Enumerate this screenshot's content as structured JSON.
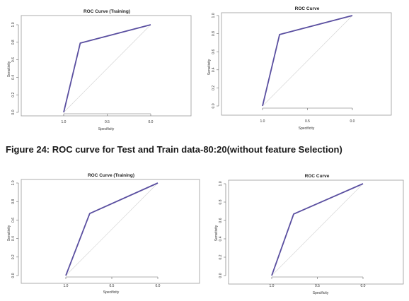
{
  "caption": "Figure 24: ROC curve for Test and Train data-80:20(without feature Selection)",
  "colors": {
    "roc_line": "#5a4fa0",
    "diagonal": "#d0d0d0",
    "frame": "#9a9a9a"
  },
  "chart_data": [
    {
      "type": "line",
      "title": "ROC Curve (Training)",
      "xlabel": "Specificity",
      "ylabel": "Sensitivity",
      "xlim": [
        1.0,
        0.0
      ],
      "ylim": [
        0.0,
        1.0
      ],
      "x_ticks": [
        "1.0",
        "0.5",
        "0.0"
      ],
      "y_ticks": [
        "0.0",
        "0.2",
        "0.4",
        "0.6",
        "0.8",
        "1.0"
      ],
      "grid": false,
      "series": [
        {
          "x": [
            1.0,
            0.81,
            0.0
          ],
          "y": [
            0.0,
            0.79,
            1.0
          ]
        }
      ],
      "reference_line": {
        "x": [
          1.0,
          0.0
        ],
        "y": [
          0.0,
          1.0
        ]
      }
    },
    {
      "type": "line",
      "title": "ROC Curve",
      "xlabel": "Specificity",
      "ylabel": "Sensitivity",
      "xlim": [
        1.0,
        0.0
      ],
      "ylim": [
        0.0,
        1.0
      ],
      "x_ticks": [
        "1.0",
        "0.5",
        "0.0"
      ],
      "y_ticks": [
        "0.0",
        "0.2",
        "0.4",
        "0.6",
        "0.8",
        "1.0"
      ],
      "grid": false,
      "series": [
        {
          "x": [
            1.0,
            0.81,
            0.0
          ],
          "y": [
            0.0,
            0.79,
            1.0
          ]
        }
      ],
      "reference_line": {
        "x": [
          1.0,
          0.0
        ],
        "y": [
          0.0,
          1.0
        ]
      }
    },
    {
      "type": "line",
      "title": "ROC Curve (Training)",
      "xlabel": "Specificity",
      "ylabel": "Sensitivity",
      "xlim": [
        1.0,
        0.0
      ],
      "ylim": [
        0.0,
        1.0
      ],
      "x_ticks": [
        "1.0",
        "0.5",
        "0.0"
      ],
      "y_ticks": [
        "0.0",
        "0.2",
        "0.4",
        "0.6",
        "0.8",
        "1.0"
      ],
      "grid": false,
      "series": [
        {
          "x": [
            1.0,
            0.74,
            0.0
          ],
          "y": [
            0.0,
            0.67,
            1.0
          ]
        }
      ],
      "reference_line": {
        "x": [
          1.0,
          0.0
        ],
        "y": [
          0.0,
          1.0
        ]
      }
    },
    {
      "type": "line",
      "title": "ROC Curve",
      "xlabel": "Specificity",
      "ylabel": "Sensitivity",
      "xlim": [
        1.0,
        0.0
      ],
      "ylim": [
        0.0,
        1.0
      ],
      "x_ticks": [
        "1.0",
        "0.5",
        "0.0"
      ],
      "y_ticks": [
        "0.0",
        "0.2",
        "0.4",
        "0.6",
        "0.8",
        "1.0"
      ],
      "grid": false,
      "series": [
        {
          "x": [
            1.0,
            0.76,
            0.0
          ],
          "y": [
            0.0,
            0.67,
            1.0
          ]
        }
      ],
      "reference_line": {
        "x": [
          1.0,
          0.0
        ],
        "y": [
          0.0,
          1.0
        ]
      }
    }
  ]
}
